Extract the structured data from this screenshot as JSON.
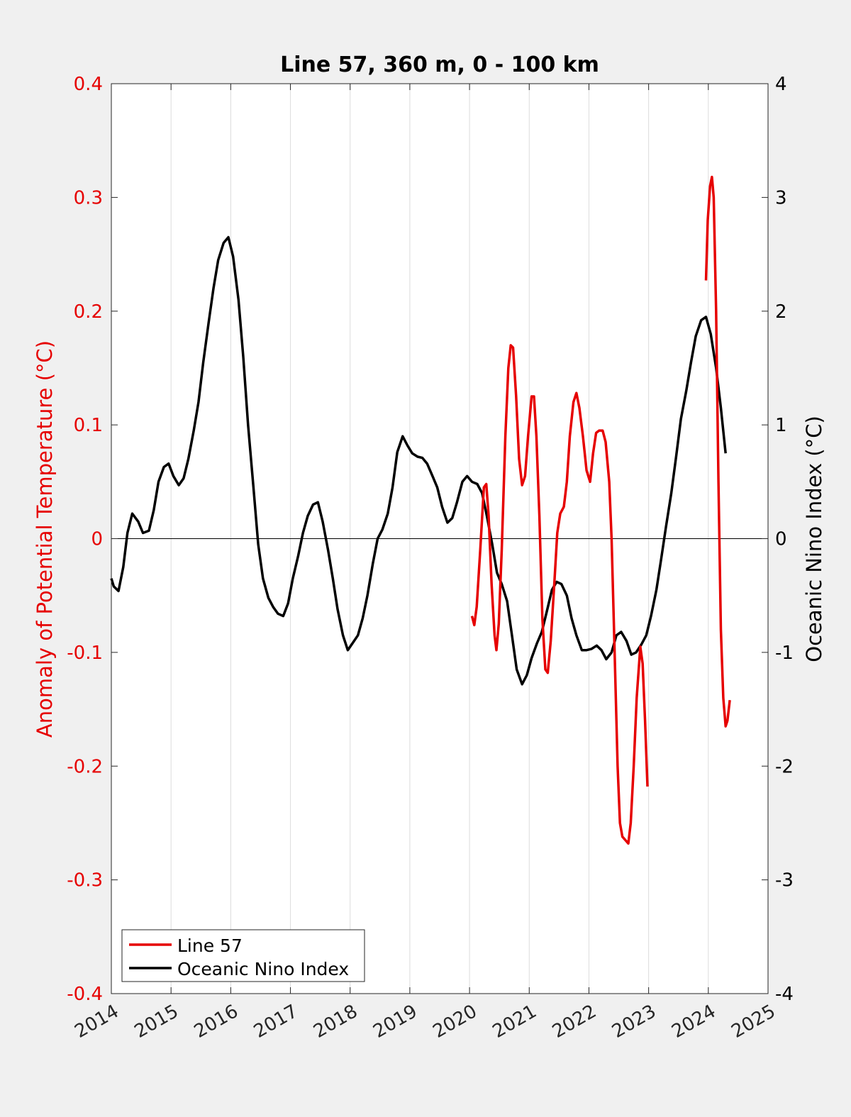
{
  "chart_data": {
    "type": "line",
    "title": "Line 57, 360 m, 0 - 100 km",
    "xlabel": "",
    "ylabel_left": "Anomaly of Potential Temperature (°C)",
    "ylabel_right": "Oceanic Nino Index (°C)",
    "xlim": [
      2014,
      2025
    ],
    "ylim_left": [
      -0.4,
      0.4
    ],
    "ylim_right": [
      -4,
      4
    ],
    "x_ticks": [
      "2014",
      "2015",
      "2016",
      "2017",
      "2018",
      "2019",
      "2020",
      "2021",
      "2022",
      "2023",
      "2024",
      "2025"
    ],
    "y_ticks_left": [
      "0.4",
      "0.3",
      "0.2",
      "0.1",
      "0",
      "-0.1",
      "-0.2",
      "-0.3",
      "-0.4"
    ],
    "y_ticks_right": [
      "4",
      "3",
      "2",
      "1",
      "0",
      "-1",
      "-2",
      "-3",
      "-4"
    ],
    "grid": "vertical",
    "legend_position": "bottom-left",
    "colors": {
      "line57": "#e60000",
      "oni": "#000000",
      "left_axis": "#e60000",
      "right_axis": "#000000"
    },
    "series": [
      {
        "name": "Line 57",
        "axis": "left",
        "segments": [
          [
            [
              2020.04,
              -0.068
            ],
            [
              2020.08,
              -0.076
            ],
            [
              2020.12,
              -0.06
            ],
            [
              2020.18,
              -0.01
            ],
            [
              2020.24,
              0.045
            ],
            [
              2020.28,
              0.048
            ],
            [
              2020.32,
              0.02
            ],
            [
              2020.37,
              -0.04
            ],
            [
              2020.42,
              -0.085
            ],
            [
              2020.45,
              -0.098
            ],
            [
              2020.49,
              -0.075
            ],
            [
              2020.54,
              -0.01
            ],
            [
              2020.6,
              0.09
            ],
            [
              2020.65,
              0.15
            ],
            [
              2020.69,
              0.17
            ],
            [
              2020.73,
              0.168
            ],
            [
              2020.78,
              0.125
            ],
            [
              2020.83,
              0.07
            ],
            [
              2020.88,
              0.047
            ],
            [
              2020.93,
              0.055
            ],
            [
              2020.98,
              0.09
            ],
            [
              2021.04,
              0.125
            ],
            [
              2021.08,
              0.125
            ],
            [
              2021.12,
              0.09
            ],
            [
              2021.17,
              0.02
            ],
            [
              2021.22,
              -0.07
            ],
            [
              2021.27,
              -0.115
            ],
            [
              2021.31,
              -0.118
            ],
            [
              2021.36,
              -0.09
            ],
            [
              2021.42,
              -0.04
            ],
            [
              2021.47,
              0.005
            ],
            [
              2021.52,
              0.022
            ],
            [
              2021.58,
              0.028
            ],
            [
              2021.63,
              0.05
            ],
            [
              2021.68,
              0.09
            ],
            [
              2021.74,
              0.12
            ],
            [
              2021.79,
              0.128
            ],
            [
              2021.84,
              0.115
            ],
            [
              2021.9,
              0.09
            ],
            [
              2021.96,
              0.06
            ],
            [
              2022.02,
              0.05
            ],
            [
              2022.07,
              0.075
            ],
            [
              2022.12,
              0.093
            ],
            [
              2022.17,
              0.095
            ],
            [
              2022.23,
              0.095
            ],
            [
              2022.28,
              0.085
            ],
            [
              2022.34,
              0.05
            ],
            [
              2022.38,
              0.0
            ],
            [
              2022.43,
              -0.1
            ],
            [
              2022.48,
              -0.2
            ],
            [
              2022.52,
              -0.25
            ],
            [
              2022.56,
              -0.262
            ],
            [
              2022.61,
              -0.265
            ],
            [
              2022.66,
              -0.268
            ],
            [
              2022.7,
              -0.25
            ],
            [
              2022.75,
              -0.2
            ],
            [
              2022.8,
              -0.14
            ],
            [
              2022.86,
              -0.095
            ],
            [
              2022.9,
              -0.11
            ],
            [
              2022.94,
              -0.16
            ],
            [
              2022.98,
              -0.218
            ]
          ],
          [
            [
              2023.96,
              0.227
            ],
            [
              2023.99,
              0.28
            ],
            [
              2024.03,
              0.31
            ],
            [
              2024.06,
              0.318
            ],
            [
              2024.09,
              0.3
            ],
            [
              2024.13,
              0.2
            ],
            [
              2024.17,
              0.05
            ],
            [
              2024.21,
              -0.08
            ],
            [
              2024.25,
              -0.14
            ],
            [
              2024.29,
              -0.165
            ],
            [
              2024.32,
              -0.16
            ],
            [
              2024.36,
              -0.142
            ]
          ]
        ]
      },
      {
        "name": "Oceanic Nino Index",
        "axis": "right",
        "values": [
          [
            2014.0,
            -0.35
          ],
          [
            2014.04,
            -0.42
          ],
          [
            2014.12,
            -0.46
          ],
          [
            2014.2,
            -0.25
          ],
          [
            2014.27,
            0.05
          ],
          [
            2014.35,
            0.22
          ],
          [
            2014.45,
            0.15
          ],
          [
            2014.53,
            0.05
          ],
          [
            2014.63,
            0.07
          ],
          [
            2014.71,
            0.25
          ],
          [
            2014.79,
            0.5
          ],
          [
            2014.88,
            0.63
          ],
          [
            2014.96,
            0.66
          ],
          [
            2015.04,
            0.55
          ],
          [
            2015.13,
            0.47
          ],
          [
            2015.21,
            0.53
          ],
          [
            2015.29,
            0.7
          ],
          [
            2015.38,
            0.95
          ],
          [
            2015.46,
            1.2
          ],
          [
            2015.54,
            1.55
          ],
          [
            2015.63,
            1.9
          ],
          [
            2015.71,
            2.2
          ],
          [
            2015.79,
            2.45
          ],
          [
            2015.88,
            2.6
          ],
          [
            2015.96,
            2.65
          ],
          [
            2016.04,
            2.48
          ],
          [
            2016.13,
            2.1
          ],
          [
            2016.21,
            1.6
          ],
          [
            2016.29,
            1.0
          ],
          [
            2016.38,
            0.45
          ],
          [
            2016.46,
            -0.05
          ],
          [
            2016.54,
            -0.35
          ],
          [
            2016.63,
            -0.52
          ],
          [
            2016.71,
            -0.6
          ],
          [
            2016.79,
            -0.66
          ],
          [
            2016.88,
            -0.68
          ],
          [
            2016.96,
            -0.57
          ],
          [
            2017.04,
            -0.35
          ],
          [
            2017.13,
            -0.15
          ],
          [
            2017.21,
            0.05
          ],
          [
            2017.29,
            0.2
          ],
          [
            2017.38,
            0.3
          ],
          [
            2017.46,
            0.32
          ],
          [
            2017.54,
            0.15
          ],
          [
            2017.63,
            -0.1
          ],
          [
            2017.71,
            -0.35
          ],
          [
            2017.79,
            -0.62
          ],
          [
            2017.88,
            -0.85
          ],
          [
            2017.96,
            -0.98
          ],
          [
            2018.04,
            -0.92
          ],
          [
            2018.13,
            -0.85
          ],
          [
            2018.21,
            -0.7
          ],
          [
            2018.29,
            -0.5
          ],
          [
            2018.38,
            -0.22
          ],
          [
            2018.46,
            0.0
          ],
          [
            2018.54,
            0.08
          ],
          [
            2018.63,
            0.22
          ],
          [
            2018.71,
            0.45
          ],
          [
            2018.79,
            0.76
          ],
          [
            2018.88,
            0.9
          ],
          [
            2018.96,
            0.82
          ],
          [
            2019.04,
            0.75
          ],
          [
            2019.13,
            0.72
          ],
          [
            2019.21,
            0.71
          ],
          [
            2019.29,
            0.66
          ],
          [
            2019.38,
            0.55
          ],
          [
            2019.46,
            0.45
          ],
          [
            2019.54,
            0.28
          ],
          [
            2019.63,
            0.14
          ],
          [
            2019.71,
            0.18
          ],
          [
            2019.79,
            0.32
          ],
          [
            2019.88,
            0.5
          ],
          [
            2019.96,
            0.55
          ],
          [
            2020.04,
            0.5
          ],
          [
            2020.13,
            0.48
          ],
          [
            2020.21,
            0.4
          ],
          [
            2020.29,
            0.2
          ],
          [
            2020.38,
            -0.05
          ],
          [
            2020.46,
            -0.3
          ],
          [
            2020.54,
            -0.4
          ],
          [
            2020.63,
            -0.55
          ],
          [
            2020.71,
            -0.85
          ],
          [
            2020.79,
            -1.15
          ],
          [
            2020.88,
            -1.28
          ],
          [
            2020.96,
            -1.2
          ],
          [
            2021.04,
            -1.05
          ],
          [
            2021.13,
            -0.92
          ],
          [
            2021.21,
            -0.82
          ],
          [
            2021.29,
            -0.65
          ],
          [
            2021.38,
            -0.45
          ],
          [
            2021.46,
            -0.38
          ],
          [
            2021.54,
            -0.4
          ],
          [
            2021.63,
            -0.5
          ],
          [
            2021.71,
            -0.7
          ],
          [
            2021.79,
            -0.85
          ],
          [
            2021.88,
            -0.98
          ],
          [
            2021.96,
            -0.98
          ],
          [
            2022.04,
            -0.97
          ],
          [
            2022.13,
            -0.94
          ],
          [
            2022.21,
            -0.98
          ],
          [
            2022.29,
            -1.06
          ],
          [
            2022.38,
            -1.0
          ],
          [
            2022.46,
            -0.85
          ],
          [
            2022.54,
            -0.82
          ],
          [
            2022.63,
            -0.9
          ],
          [
            2022.71,
            -1.02
          ],
          [
            2022.79,
            -1.0
          ],
          [
            2022.88,
            -0.93
          ],
          [
            2022.96,
            -0.85
          ],
          [
            2023.04,
            -0.68
          ],
          [
            2023.13,
            -0.45
          ],
          [
            2023.21,
            -0.18
          ],
          [
            2023.29,
            0.1
          ],
          [
            2023.38,
            0.4
          ],
          [
            2023.46,
            0.72
          ],
          [
            2023.54,
            1.05
          ],
          [
            2023.63,
            1.3
          ],
          [
            2023.71,
            1.55
          ],
          [
            2023.79,
            1.78
          ],
          [
            2023.88,
            1.92
          ],
          [
            2023.96,
            1.95
          ],
          [
            2024.04,
            1.8
          ],
          [
            2024.13,
            1.5
          ],
          [
            2024.21,
            1.15
          ],
          [
            2024.29,
            0.75
          ]
        ]
      }
    ]
  }
}
